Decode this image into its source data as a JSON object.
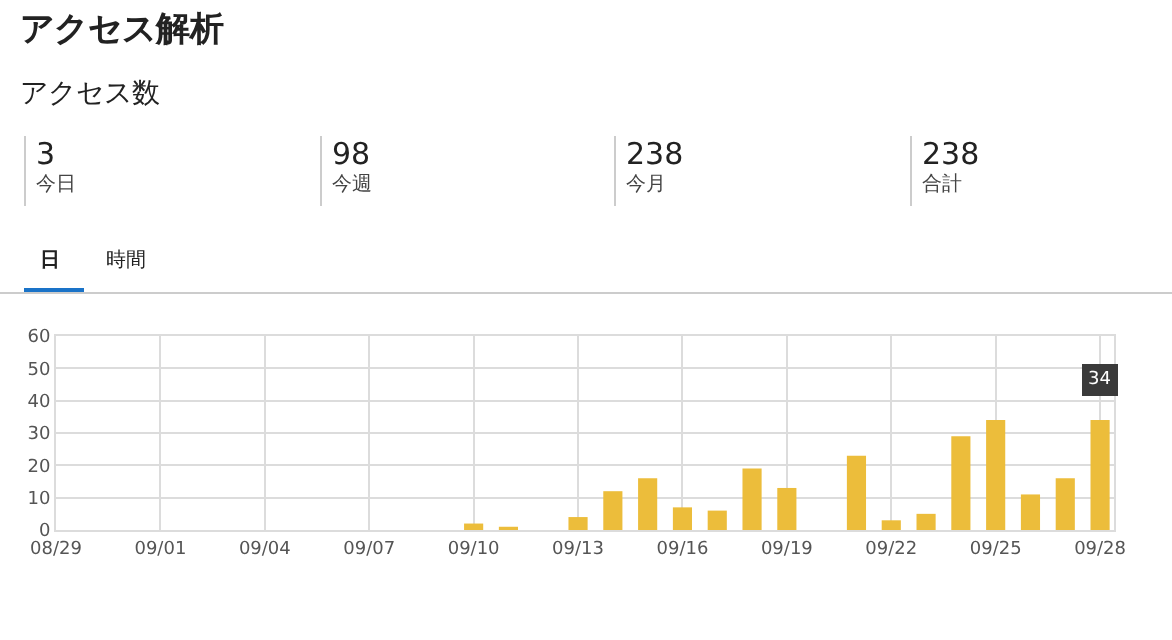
{
  "chart_data": [
    {
      "type": "other",
      "title": "アクセス解析",
      "subtitle": "アクセス数",
      "annotations": [
        "3",
        "今日",
        "98",
        "今週",
        "238",
        "今月",
        "238",
        "合計",
        "日",
        "時間"
      ]
    },
    {
      "type": "bar",
      "categories": [
        "08/29",
        null,
        null,
        "09/01",
        null,
        null,
        "09/04",
        null,
        null,
        "09/07",
        null,
        null,
        "09/10",
        null,
        null,
        "09/13",
        null,
        null,
        "09/16",
        null,
        null,
        "09/19",
        null,
        null,
        "09/22",
        null,
        null,
        "09/25",
        null,
        null,
        "09/28"
      ],
      "values": [
        0,
        0,
        0,
        0,
        0,
        0,
        0,
        0,
        0,
        0,
        0,
        0,
        2,
        1,
        0,
        4,
        12,
        16,
        7,
        6,
        19,
        13,
        0,
        23,
        3,
        5,
        29,
        34,
        11,
        16,
        34
      ],
      "color": "#ecbd3b",
      "ylim": [
        0,
        60
      ],
      "yticks": [
        0,
        10,
        20,
        30,
        40,
        50,
        60
      ],
      "grid": true,
      "legend": false,
      "annotations": [
        {
          "text": "34",
          "x": "09/28",
          "y": 34
        }
      ]
    }
  ]
}
